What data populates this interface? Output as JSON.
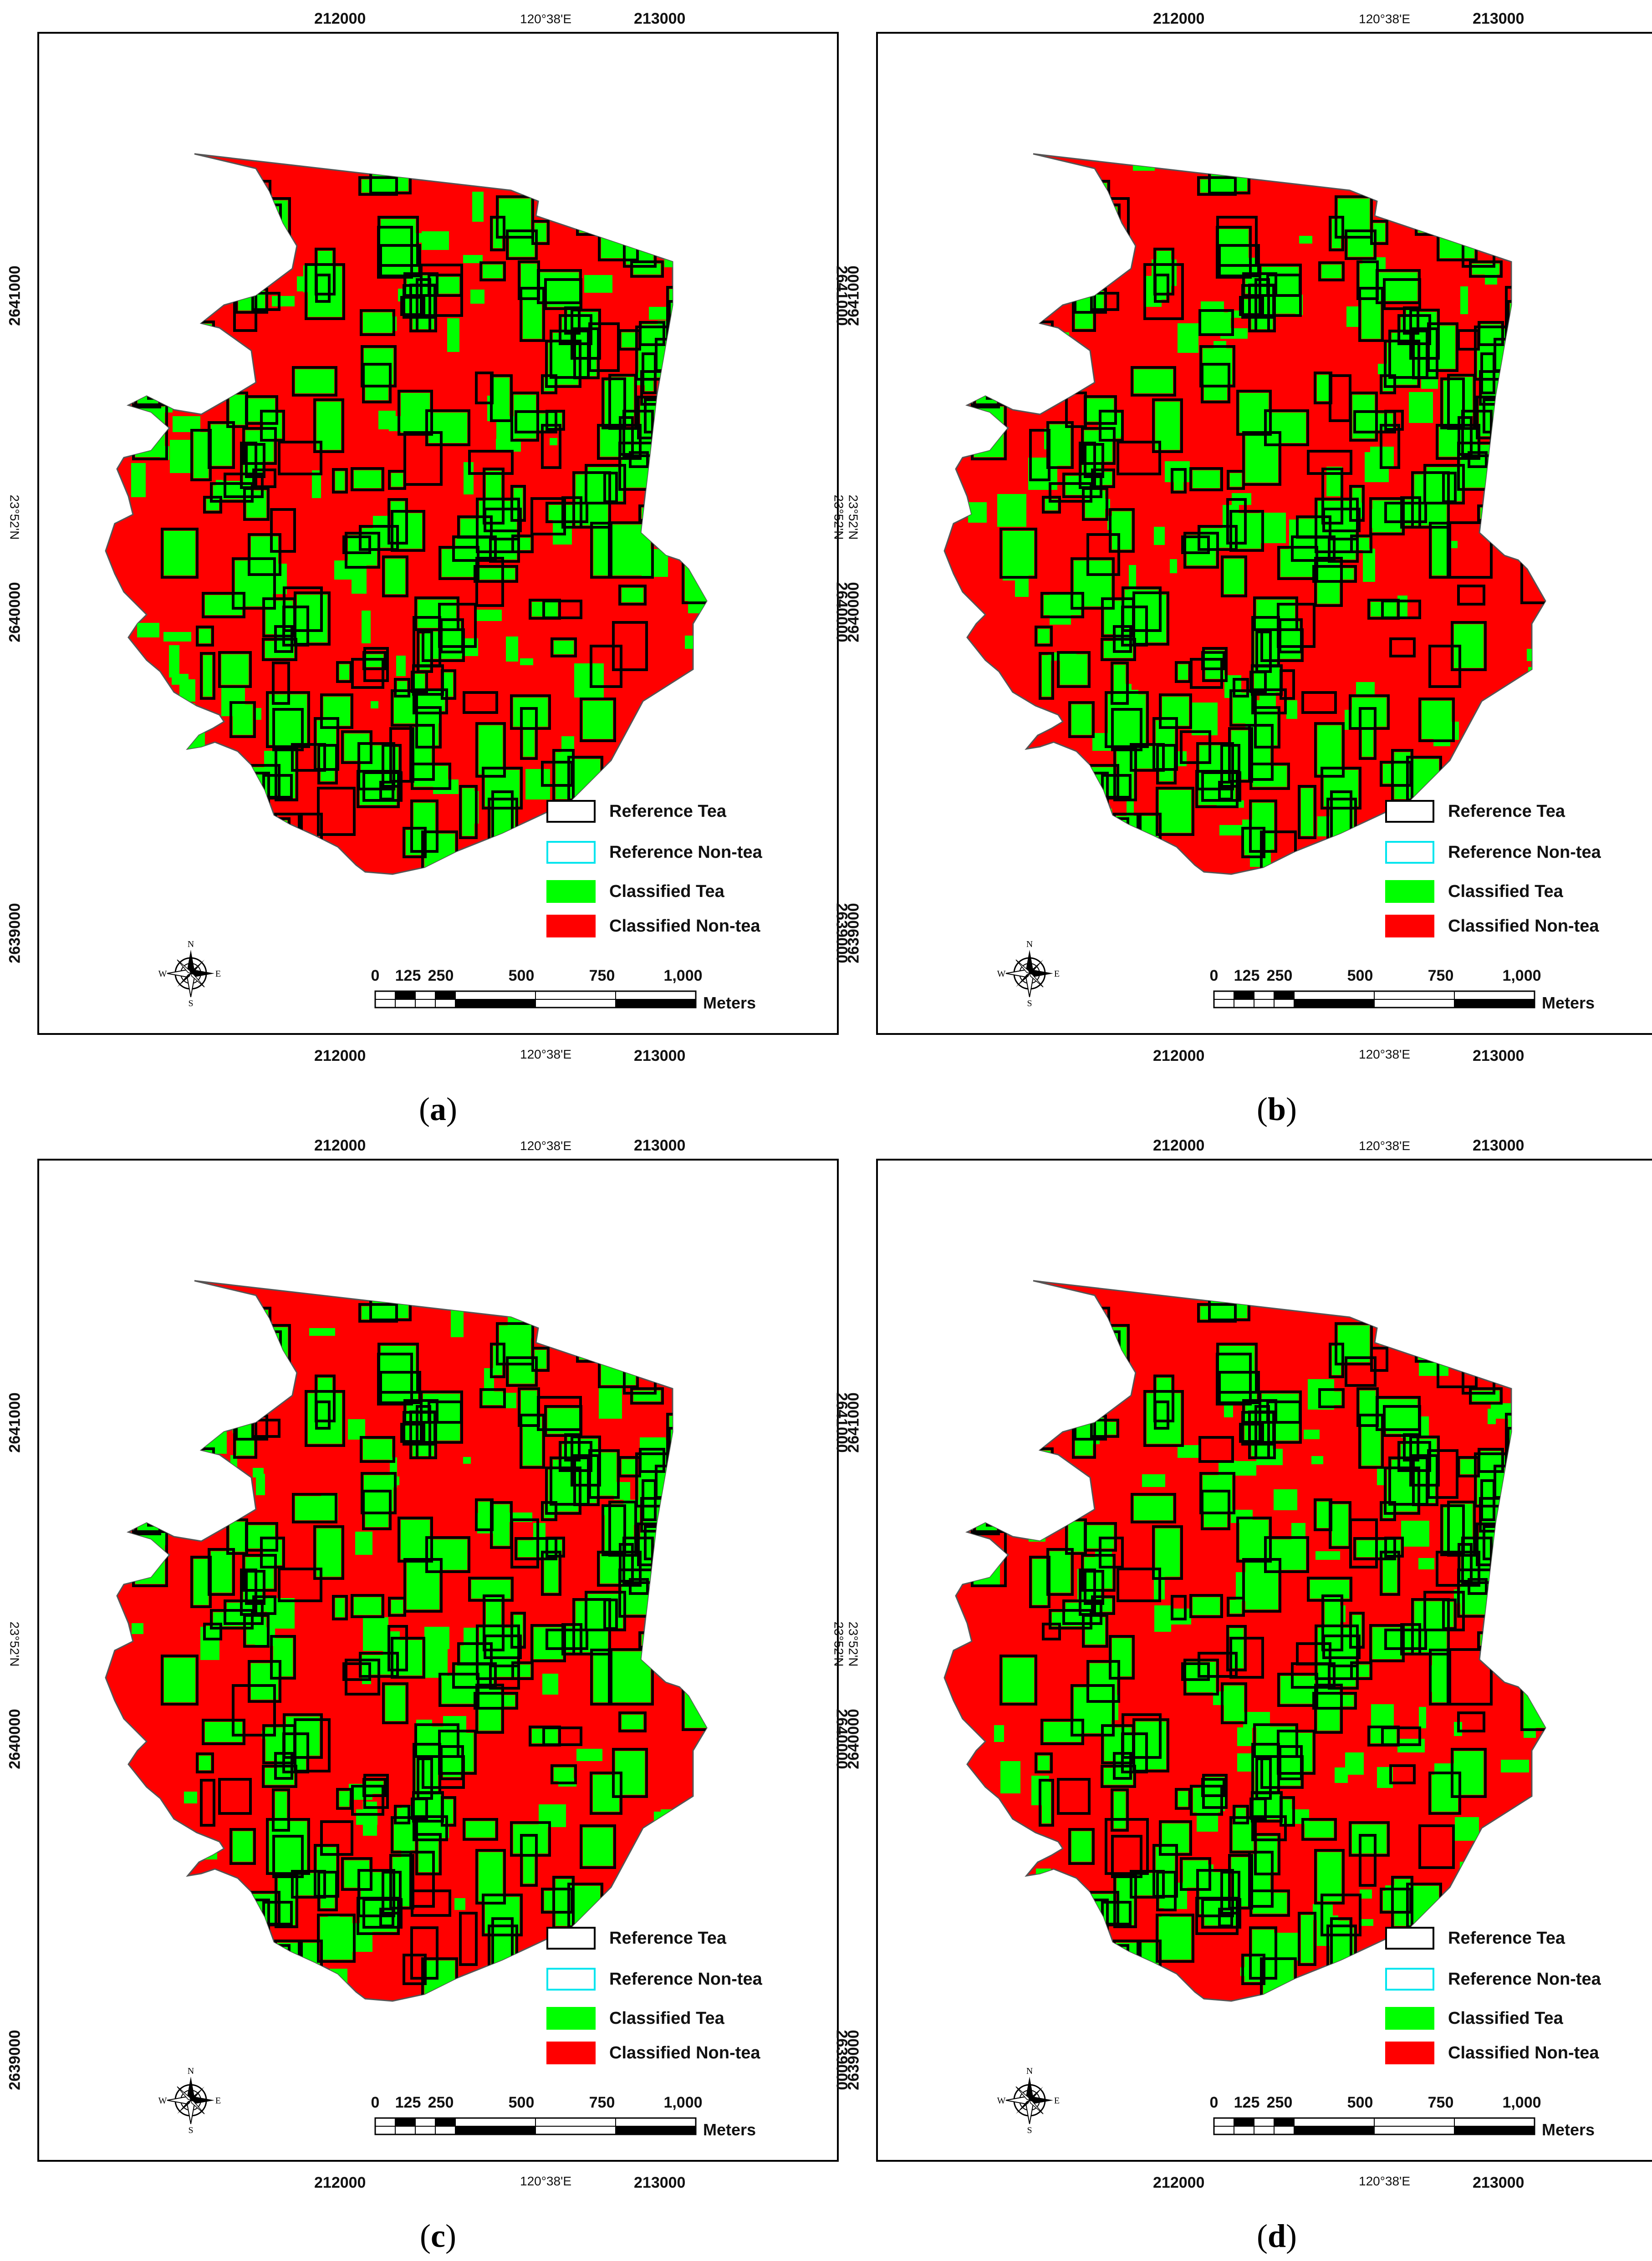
{
  "colors": {
    "tea": "#00ff00",
    "non_tea": "#ff0000",
    "reference_tea_outline": "#000000",
    "reference_non_tea_outline": "#00e5ee"
  },
  "axes": {
    "top_x_ticks": [
      "212000",
      "213000"
    ],
    "top_geo_tick": "120°38'E",
    "bottom_x_ticks": [
      "212000",
      "213000"
    ],
    "bottom_geo_tick": "120°38'E",
    "left_y_ticks": [
      "2641000",
      "2640000",
      "2639000"
    ],
    "left_geo_tick": "23°52'N",
    "right_y_ticks": [
      "2641000",
      "2640000",
      "2639000"
    ],
    "right_geo_tick": "23°52'N"
  },
  "legend": {
    "items": [
      {
        "label": "Reference Tea",
        "style": "outline-black"
      },
      {
        "label": "Reference Non-tea",
        "style": "outline-cyan"
      },
      {
        "label": "Classified Tea",
        "style": "fill-green"
      },
      {
        "label": "Classified Non-tea",
        "style": "fill-red"
      }
    ]
  },
  "scale_bar": {
    "labels": [
      "0",
      "125",
      "250",
      "500",
      "750",
      "1,000"
    ],
    "unit": "Meters"
  },
  "north_arrow": {
    "icon": "compass-rose-icon",
    "n": "N",
    "s": "S",
    "e": "E",
    "w": "W"
  },
  "panels": [
    {
      "caption_letter": "a",
      "tea_fraction": 0.24
    },
    {
      "caption_letter": "b",
      "tea_fraction": 0.23
    },
    {
      "caption_letter": "c",
      "tea_fraction": 0.21
    },
    {
      "caption_letter": "d",
      "tea_fraction": 0.25
    }
  ]
}
